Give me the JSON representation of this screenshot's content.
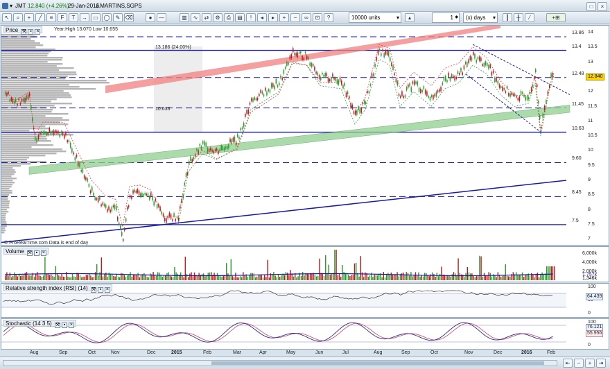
{
  "titlebar": {
    "symbol": "JMT",
    "price_change": "12.840 (+4.26%)",
    "date": "29-Jan-2016",
    "name": "J.MARTINS,SGPS"
  },
  "toolbar": {
    "units_value": "10000 units",
    "period_value": "1",
    "period_unit": "(x) days",
    "new_chart_label": "+"
  },
  "price_panel": {
    "title": "Price",
    "stats": "Year:High 13.070 Low 10.655",
    "attribution": "© ProRealTime.com  Data is end of day",
    "range_label": "13.186 (24.00%)",
    "low_label": "10.633",
    "current_price": "12.840",
    "levels": [
      "13.86",
      "13.4",
      "12.48",
      "11.45",
      "10.63",
      "9.60",
      "8.45",
      "7.5"
    ],
    "axis_ticks": [
      "14",
      "13.5",
      "13",
      "12.5",
      "12",
      "11.5",
      "11",
      "10.5",
      "10",
      "9.5",
      "9",
      "8.5",
      "8",
      "7.5",
      "7"
    ]
  },
  "volume_panel": {
    "title": "Volume",
    "ticks": [
      "6,000k",
      "4,000k",
      "2,000k"
    ],
    "current": "1,346k",
    "avg": "1,757k"
  },
  "rsi_panel": {
    "title": "Relative strength index (RSI) (14)",
    "ticks": [
      "100",
      "50",
      "0"
    ],
    "current": "64.439"
  },
  "stoch_panel": {
    "title": "Stochastic (14 3 5)",
    "ticks": [
      "100",
      "0"
    ],
    "k_value": "76.121",
    "d_value": "55.956"
  },
  "x_axis": [
    "Aug",
    "Sep",
    "Oct",
    "Nov",
    "Dec",
    "2015",
    "Feb",
    "Mar",
    "Apr",
    "May",
    "Jun",
    "Jul",
    "Aug",
    "Sep",
    "Oct",
    "Nov",
    "Dec",
    "2016",
    "Feb"
  ],
  "colors": {
    "up": "#2a9a2a",
    "down": "#c01a1a",
    "hline": "#1a1aa0",
    "channel_red": "#f08080",
    "channel_green": "#90d090",
    "ma_red": "#e04040",
    "ma_green": "#30a040"
  }
}
